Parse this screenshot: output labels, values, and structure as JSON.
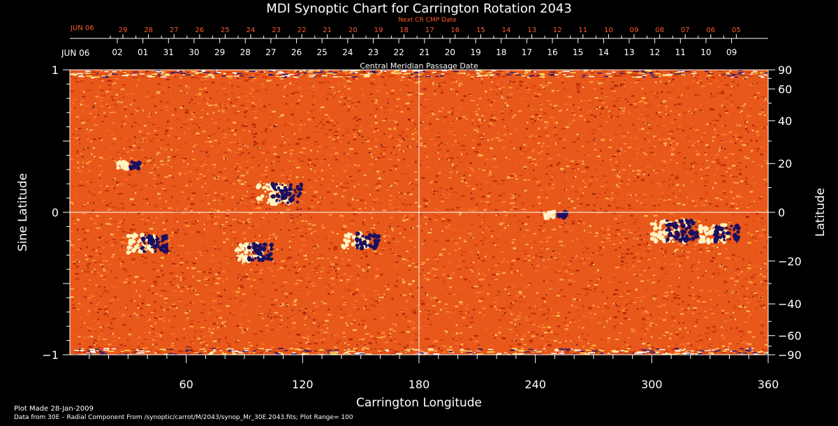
{
  "title": "MDI Synoptic Chart for Carrington Rotation 2043",
  "top_axis": {
    "label": "Next CR CMP Date",
    "start_label": "JUN 06",
    "ticks": [
      "29",
      "28",
      "27",
      "26",
      "25",
      "24",
      "23",
      "22",
      "21",
      "20",
      "19",
      "18",
      "17",
      "16",
      "15",
      "14",
      "13",
      "12",
      "11",
      "10",
      "09",
      "08",
      "07",
      "06",
      "05"
    ]
  },
  "second_axis": {
    "label": "Central Meridian Passage Date",
    "start_label": "JUN 06",
    "ticks": [
      "02",
      "01",
      "31",
      "30",
      "29",
      "28",
      "27",
      "26",
      "25",
      "24",
      "23",
      "22",
      "21",
      "20",
      "19",
      "18",
      "17",
      "16",
      "15",
      "14",
      "13",
      "12",
      "11",
      "10",
      "09"
    ]
  },
  "chart_data": {
    "type": "heatmap",
    "title": "MDI Synoptic Chart for Carrington Rotation 2043",
    "xlabel": "Carrington Longitude",
    "ylabel": "Sine Latitude",
    "y2label": "Latitude",
    "xlim": [
      0,
      360
    ],
    "ylim": [
      -1,
      1
    ],
    "x_ticks": [
      60,
      120,
      180,
      240,
      300,
      360
    ],
    "y_ticks": [
      -1,
      0,
      1
    ],
    "y_tick_labels": [
      "−1",
      "0",
      "1"
    ],
    "y2_ticks": [
      90,
      60,
      40,
      20,
      0,
      -20,
      -40,
      -60,
      -90
    ],
    "y2_tick_labels": [
      "90",
      "60",
      "40",
      "20",
      "0",
      "−20",
      "−40",
      "−60",
      "−90"
    ],
    "reference_lines": {
      "x": 180,
      "y": 0
    },
    "active_regions": [
      {
        "lon": 108,
        "sinlat": 0.13,
        "strength": 1.2
      },
      {
        "lon": 40,
        "sinlat": -0.22,
        "strength": 1.0
      },
      {
        "lon": 95,
        "sinlat": -0.28,
        "strength": 1.0
      },
      {
        "lon": 150,
        "sinlat": -0.2,
        "strength": 0.9
      },
      {
        "lon": 312,
        "sinlat": -0.13,
        "strength": 1.3
      },
      {
        "lon": 335,
        "sinlat": -0.15,
        "strength": 1.0
      },
      {
        "lon": 30,
        "sinlat": 0.33,
        "strength": 0.4
      },
      {
        "lon": 250,
        "sinlat": -0.02,
        "strength": 0.4
      }
    ]
  },
  "footer": {
    "plot_made": "Plot Made 28-Jan-2009",
    "data_line": "Data from 30E – Radial Component From /synoptic/carrot/M/2043/synop_Mr_30E.2043.fits; Plot Range= 100"
  },
  "colors": {
    "background": "#000000",
    "map_base": "#e8581a",
    "positive": "#fff3c0",
    "negative": "#1a1060",
    "date_red": "#ff5a2a"
  }
}
